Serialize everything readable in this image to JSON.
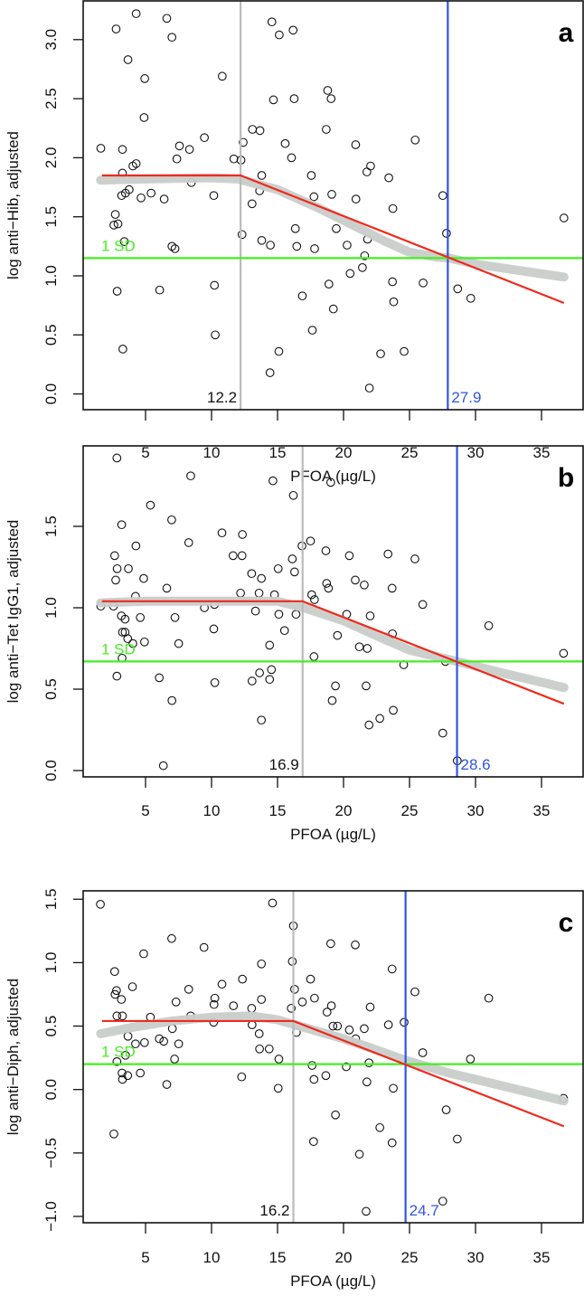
{
  "chart_data": [
    {
      "type": "scatter",
      "panel_letter": "a",
      "xlabel": "PFOA (µg/L)",
      "ylabel": "log anti−Hib, adjusted",
      "xlim": [
        0,
        37.5
      ],
      "ylim": [
        -0.05,
        3.35
      ],
      "xticks": [
        5,
        10,
        15,
        20,
        25,
        30,
        35
      ],
      "yticks": [
        "0.0",
        "0.5",
        "1.0",
        "1.5",
        "2.0",
        "2.5",
        "3.0"
      ],
      "sd_line": {
        "label": "1 SD",
        "y": 1.15
      },
      "threshold_gray": {
        "label": "12.2",
        "x": 12.2
      },
      "threshold_blue": {
        "label": "27.9",
        "x": 27.9
      },
      "piecewise_fit": [
        [
          1.7,
          1.85
        ],
        [
          12.2,
          1.85
        ],
        [
          36.7,
          0.77
        ]
      ],
      "smooth_fit": [
        [
          1.6,
          1.81
        ],
        [
          5,
          1.82
        ],
        [
          10,
          1.83
        ],
        [
          12,
          1.82
        ],
        [
          15,
          1.73
        ],
        [
          18,
          1.58
        ],
        [
          20,
          1.47
        ],
        [
          23,
          1.3
        ],
        [
          25,
          1.2
        ],
        [
          27,
          1.16
        ],
        [
          28,
          1.15
        ],
        [
          30,
          1.1
        ],
        [
          33,
          1.05
        ],
        [
          36.7,
          0.99
        ]
      ],
      "points": [
        [
          1.61,
          2.08
        ],
        [
          2.77,
          3.09
        ],
        [
          4.29,
          3.22
        ],
        [
          6.61,
          3.18
        ],
        [
          7.0,
          3.02
        ],
        [
          3.67,
          2.83
        ],
        [
          4.94,
          2.67
        ],
        [
          4.89,
          2.34
        ],
        [
          3.25,
          2.07
        ],
        [
          4.04,
          1.93
        ],
        [
          4.29,
          1.95
        ],
        [
          3.25,
          1.87
        ],
        [
          3.76,
          1.73
        ],
        [
          3.48,
          1.7
        ],
        [
          3.19,
          1.68
        ],
        [
          4.66,
          1.66
        ],
        [
          5.42,
          1.7
        ],
        [
          6.41,
          1.65
        ],
        [
          2.71,
          1.52
        ],
        [
          2.6,
          1.43
        ],
        [
          2.91,
          1.44
        ],
        [
          3.39,
          1.29
        ],
        [
          7.0,
          1.25
        ],
        [
          7.23,
          1.23
        ],
        [
          7.37,
          1.99
        ],
        [
          7.57,
          2.1
        ],
        [
          8.33,
          2.07
        ],
        [
          8.47,
          1.79
        ],
        [
          9.46,
          2.17
        ],
        [
          10.81,
          2.69
        ],
        [
          10.17,
          1.68
        ],
        [
          11.69,
          1.99
        ],
        [
          12.23,
          1.98
        ],
        [
          12.4,
          2.13
        ],
        [
          13.1,
          2.24
        ],
        [
          13.67,
          2.23
        ],
        [
          13.8,
          1.85
        ],
        [
          13.64,
          1.72
        ],
        [
          13.07,
          1.61
        ],
        [
          12.31,
          1.35
        ],
        [
          13.8,
          1.3
        ],
        [
          14.46,
          1.26
        ],
        [
          10.22,
          0.92
        ],
        [
          10.28,
          0.5
        ],
        [
          6.07,
          0.88
        ],
        [
          2.85,
          0.87
        ],
        [
          3.28,
          0.38
        ],
        [
          14.57,
          3.15
        ],
        [
          15.13,
          3.04
        ],
        [
          16.18,
          3.08
        ],
        [
          14.69,
          2.49
        ],
        [
          16.26,
          2.5
        ],
        [
          15.58,
          2.12
        ],
        [
          16.06,
          2.0
        ],
        [
          18.8,
          2.57
        ],
        [
          19.06,
          2.5
        ],
        [
          18.69,
          2.24
        ],
        [
          17.56,
          1.85
        ],
        [
          17.76,
          1.67
        ],
        [
          19.11,
          1.69
        ],
        [
          16.35,
          1.4
        ],
        [
          16.46,
          1.25
        ],
        [
          17.81,
          1.23
        ],
        [
          19.45,
          1.4
        ],
        [
          20.27,
          1.26
        ],
        [
          20.92,
          2.11
        ],
        [
          20.94,
          1.65
        ],
        [
          22.05,
          1.93
        ],
        [
          21.77,
          1.88
        ],
        [
          23.43,
          1.83
        ],
        [
          23.74,
          1.57
        ],
        [
          21.82,
          1.31
        ],
        [
          21.6,
          1.17
        ],
        [
          21.43,
          1.07
        ],
        [
          20.5,
          1.02
        ],
        [
          18.89,
          0.93
        ],
        [
          19.23,
          0.72
        ],
        [
          16.88,
          0.83
        ],
        [
          17.64,
          0.54
        ],
        [
          15.1,
          0.36
        ],
        [
          14.43,
          0.18
        ],
        [
          22.81,
          0.34
        ],
        [
          24.59,
          0.36
        ],
        [
          21.96,
          0.05
        ],
        [
          23.71,
          0.95
        ],
        [
          23.8,
          0.78
        ],
        [
          26.03,
          0.94
        ],
        [
          25.43,
          2.15
        ],
        [
          27.52,
          1.68
        ],
        [
          27.8,
          1.36
        ],
        [
          28.65,
          0.89
        ],
        [
          29.64,
          0.81
        ],
        [
          36.7,
          1.49
        ]
      ]
    },
    {
      "type": "scatter",
      "panel_letter": "b",
      "xlabel": "PFOA (µg/L)",
      "ylabel": "log anti−Tet IgG1, adjusted",
      "xlim": [
        0,
        37.5
      ],
      "ylim": [
        -0.04,
        1.97
      ],
      "xticks": [
        5,
        10,
        15,
        20,
        25,
        30,
        35
      ],
      "yticks": [
        "0.0",
        "0.5",
        "1.0",
        "1.5"
      ],
      "sd_line": {
        "label": "1 SD",
        "y": 0.67
      },
      "threshold_gray": {
        "label": "16.9",
        "x": 16.9
      },
      "threshold_blue": {
        "label": "28.6",
        "x": 28.6
      },
      "piecewise_fit": [
        [
          1.7,
          1.04
        ],
        [
          16.9,
          1.04
        ],
        [
          36.7,
          0.41
        ]
      ],
      "smooth_fit": [
        [
          1.6,
          1.03
        ],
        [
          5,
          1.04
        ],
        [
          10,
          1.04
        ],
        [
          15,
          1.04
        ],
        [
          17,
          1.0
        ],
        [
          20,
          0.92
        ],
        [
          23,
          0.81
        ],
        [
          25,
          0.74
        ],
        [
          28.6,
          0.67
        ],
        [
          32,
          0.6
        ],
        [
          36.7,
          0.51
        ]
      ],
      "points": [
        [
          2.83,
          1.92
        ],
        [
          8.42,
          1.81
        ],
        [
          14.65,
          1.78
        ],
        [
          19.03,
          1.77
        ],
        [
          16.2,
          1.69
        ],
        [
          5.37,
          1.63
        ],
        [
          6.98,
          1.54
        ],
        [
          3.19,
          1.51
        ],
        [
          10.79,
          1.46
        ],
        [
          12.34,
          1.45
        ],
        [
          8.27,
          1.4
        ],
        [
          17.5,
          1.41
        ],
        [
          16.85,
          1.38
        ],
        [
          4.27,
          1.38
        ],
        [
          18.66,
          1.35
        ],
        [
          23.37,
          1.33
        ],
        [
          2.66,
          1.32
        ],
        [
          11.63,
          1.32
        ],
        [
          12.31,
          1.32
        ],
        [
          20.44,
          1.32
        ],
        [
          25.41,
          1.3
        ],
        [
          16.12,
          1.3
        ],
        [
          2.85,
          1.24
        ],
        [
          3.7,
          1.24
        ],
        [
          15.05,
          1.24
        ],
        [
          16.29,
          1.22
        ],
        [
          13.04,
          1.21
        ],
        [
          13.78,
          1.18
        ],
        [
          4.86,
          1.18
        ],
        [
          20.89,
          1.17
        ],
        [
          2.74,
          1.17
        ],
        [
          18.72,
          1.15
        ],
        [
          21.57,
          1.14
        ],
        [
          18.86,
          1.12
        ],
        [
          23.68,
          1.12
        ],
        [
          6.61,
          1.12
        ],
        [
          12.2,
          1.09
        ],
        [
          13.6,
          1.09
        ],
        [
          14.77,
          1.08
        ],
        [
          17.59,
          1.08
        ],
        [
          17.8,
          1.05
        ],
        [
          4.24,
          1.07
        ],
        [
          1.61,
          1.01
        ],
        [
          2.57,
          1.01
        ],
        [
          9.46,
          1.0
        ],
        [
          10.22,
          1.02
        ],
        [
          26.0,
          1.02
        ],
        [
          13.33,
          0.98
        ],
        [
          16.4,
          0.96
        ],
        [
          15.1,
          0.96
        ],
        [
          20.24,
          0.96
        ],
        [
          22.02,
          0.95
        ],
        [
          3.17,
          0.95
        ],
        [
          3.45,
          0.93
        ],
        [
          4.6,
          0.94
        ],
        [
          7.23,
          0.94
        ],
        [
          31.0,
          0.89
        ],
        [
          10.17,
          0.87
        ],
        [
          3.25,
          0.85
        ],
        [
          3.45,
          0.85
        ],
        [
          15.53,
          0.86
        ],
        [
          23.71,
          0.84
        ],
        [
          19.54,
          0.83
        ],
        [
          3.65,
          0.81
        ],
        [
          4.04,
          0.78
        ],
        [
          4.92,
          0.79
        ],
        [
          7.51,
          0.78
        ],
        [
          14.4,
          0.77
        ],
        [
          21.2,
          0.76
        ],
        [
          21.8,
          0.75
        ],
        [
          36.67,
          0.72
        ],
        [
          17.76,
          0.7
        ],
        [
          3.22,
          0.69
        ],
        [
          27.72,
          0.67
        ],
        [
          24.56,
          0.65
        ],
        [
          2.83,
          0.58
        ],
        [
          6.04,
          0.57
        ],
        [
          14.54,
          0.62
        ],
        [
          13.64,
          0.6
        ],
        [
          13.07,
          0.55
        ],
        [
          14.4,
          0.56
        ],
        [
          10.25,
          0.54
        ],
        [
          19.39,
          0.52
        ],
        [
          21.71,
          0.52
        ],
        [
          7.0,
          0.43
        ],
        [
          19.14,
          0.43
        ],
        [
          23.77,
          0.37
        ],
        [
          13.78,
          0.31
        ],
        [
          22.75,
          0.32
        ],
        [
          21.93,
          0.28
        ],
        [
          27.52,
          0.23
        ],
        [
          6.35,
          0.03
        ],
        [
          28.62,
          0.06
        ]
      ]
    },
    {
      "type": "scatter",
      "panel_letter": "c",
      "xlabel": "PFOA (µg/L)",
      "ylabel": "log anti−Diph, adjusted",
      "xlim": [
        0,
        37.5
      ],
      "ylim": [
        -1.05,
        1.56
      ],
      "xticks": [
        5,
        10,
        15,
        20,
        25,
        30,
        35
      ],
      "yticks": [
        "−1.0",
        "−0.5",
        "0.0",
        "0.5",
        "1.0",
        "1.5"
      ],
      "sd_line": {
        "label": "1 SD",
        "y": 0.2
      },
      "threshold_gray": {
        "label": "16.2",
        "x": 16.2
      },
      "threshold_blue": {
        "label": "24.7",
        "x": 24.7
      },
      "piecewise_fit": [
        [
          1.7,
          0.54
        ],
        [
          16.2,
          0.54
        ],
        [
          36.7,
          -0.29
        ]
      ],
      "smooth_fit": [
        [
          1.6,
          0.44
        ],
        [
          4,
          0.49
        ],
        [
          7,
          0.54
        ],
        [
          10,
          0.57
        ],
        [
          13,
          0.58
        ],
        [
          15,
          0.55
        ],
        [
          17,
          0.49
        ],
        [
          20,
          0.4
        ],
        [
          22,
          0.33
        ],
        [
          24.7,
          0.23
        ],
        [
          28,
          0.13
        ],
        [
          32,
          0.03
        ],
        [
          36.7,
          -0.09
        ]
      ],
      "points": [
        [
          1.58,
          1.46
        ],
        [
          14.62,
          1.47
        ],
        [
          16.2,
          1.29
        ],
        [
          6.98,
          1.19
        ],
        [
          9.43,
          1.12
        ],
        [
          19.03,
          1.15
        ],
        [
          20.89,
          1.14
        ],
        [
          4.86,
          1.07
        ],
        [
          16.12,
          1.01
        ],
        [
          13.78,
          0.99
        ],
        [
          23.68,
          0.95
        ],
        [
          2.66,
          0.93
        ],
        [
          17.5,
          0.87
        ],
        [
          12.34,
          0.87
        ],
        [
          4.01,
          0.81
        ],
        [
          10.79,
          0.83
        ],
        [
          8.27,
          0.79
        ],
        [
          16.29,
          0.79
        ],
        [
          2.8,
          0.78
        ],
        [
          25.41,
          0.77
        ],
        [
          2.69,
          0.75
        ],
        [
          3.17,
          0.71
        ],
        [
          10.25,
          0.72
        ],
        [
          13.78,
          0.71
        ],
        [
          17.8,
          0.72
        ],
        [
          31.0,
          0.72
        ],
        [
          7.31,
          0.69
        ],
        [
          16.88,
          0.69
        ],
        [
          10.19,
          0.67
        ],
        [
          11.66,
          0.66
        ],
        [
          19.08,
          0.66
        ],
        [
          22.02,
          0.65
        ],
        [
          13.04,
          0.64
        ],
        [
          16.04,
          0.64
        ],
        [
          18.75,
          0.61
        ],
        [
          3.25,
          0.58
        ],
        [
          2.83,
          0.58
        ],
        [
          5.37,
          0.57
        ],
        [
          8.42,
          0.58
        ],
        [
          24.59,
          0.53
        ],
        [
          10.16,
          0.53
        ],
        [
          13.07,
          0.51
        ],
        [
          19.2,
          0.5
        ],
        [
          19.54,
          0.5
        ],
        [
          23.4,
          0.51
        ],
        [
          21.57,
          0.48
        ],
        [
          20.44,
          0.47
        ],
        [
          7.03,
          0.48
        ],
        [
          16.43,
          0.45
        ],
        [
          13.61,
          0.44
        ],
        [
          3.67,
          0.42
        ],
        [
          20.92,
          0.4
        ],
        [
          6.04,
          0.4
        ],
        [
          6.38,
          0.38
        ],
        [
          4.24,
          0.36
        ],
        [
          4.92,
          0.37
        ],
        [
          7.51,
          0.36
        ],
        [
          13.64,
          0.32
        ],
        [
          14.37,
          0.32
        ],
        [
          26.0,
          0.29
        ],
        [
          3.48,
          0.27
        ],
        [
          7.2,
          0.24
        ],
        [
          15.1,
          0.24
        ],
        [
          29.61,
          0.24
        ],
        [
          2.83,
          0.22
        ],
        [
          21.93,
          0.21
        ],
        [
          17.62,
          0.19
        ],
        [
          20.21,
          0.18
        ],
        [
          3.22,
          0.13
        ],
        [
          4.6,
          0.13
        ],
        [
          3.65,
          0.11
        ],
        [
          3.25,
          0.08
        ],
        [
          12.28,
          0.1
        ],
        [
          18.66,
          0.11
        ],
        [
          17.76,
          0.08
        ],
        [
          21.77,
          0.06
        ],
        [
          6.61,
          0.04
        ],
        [
          15.05,
          0.01
        ],
        [
          23.77,
          0.01
        ],
        [
          36.67,
          -0.07
        ],
        [
          27.78,
          -0.16
        ],
        [
          19.39,
          -0.2
        ],
        [
          22.75,
          -0.3
        ],
        [
          2.6,
          -0.35
        ],
        [
          28.62,
          -0.39
        ],
        [
          17.73,
          -0.41
        ],
        [
          23.68,
          -0.42
        ],
        [
          21.2,
          -0.51
        ],
        [
          27.52,
          -0.88
        ],
        [
          21.71,
          -0.96
        ]
      ]
    }
  ],
  "colors": {
    "fit_red": "#ee2a1e",
    "smooth_gray": "#c9cdca",
    "threshold_gray": "#b8bdb9",
    "threshold_blue": "#2f55e6",
    "sd_green": "#44ee22"
  }
}
